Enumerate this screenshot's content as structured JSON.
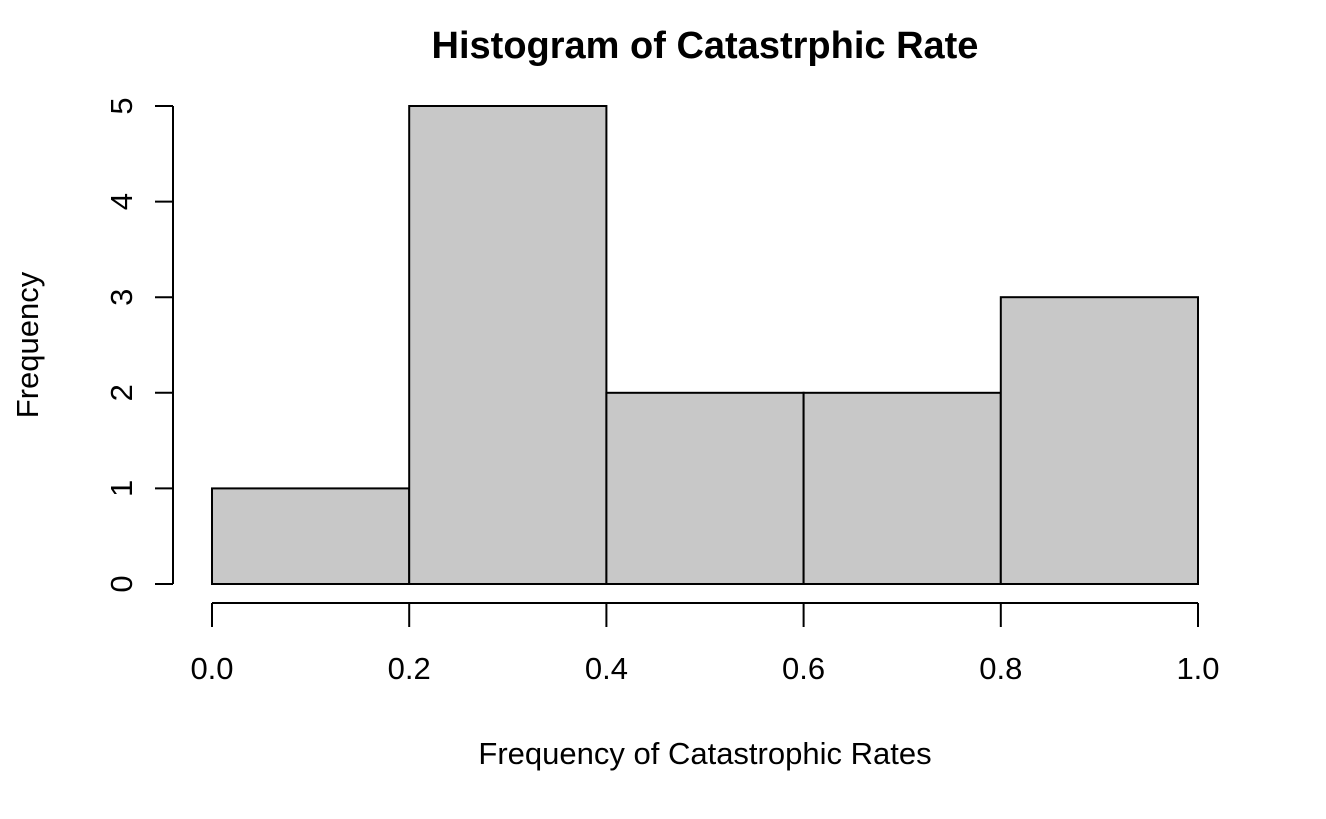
{
  "chart_data": {
    "type": "bar",
    "histogram": true,
    "title": "Histogram of Catastrphic Rate",
    "xlabel": "Frequency of Catastrophic Rates",
    "ylabel": "Frequency",
    "bins": [
      {
        "from": 0.0,
        "to": 0.2,
        "count": 1
      },
      {
        "from": 0.2,
        "to": 0.4,
        "count": 5
      },
      {
        "from": 0.4,
        "to": 0.6,
        "count": 2
      },
      {
        "from": 0.6,
        "to": 0.8,
        "count": 2
      },
      {
        "from": 0.8,
        "to": 1.0,
        "count": 3
      }
    ],
    "xlim": [
      0.0,
      1.0
    ],
    "ylim": [
      0,
      5
    ],
    "x_ticks": [
      0.0,
      0.2,
      0.4,
      0.6,
      0.8,
      1.0
    ],
    "x_tick_labels": [
      "0.0",
      "0.2",
      "0.4",
      "0.6",
      "0.8",
      "1.0"
    ],
    "y_ticks": [
      0,
      1,
      2,
      3,
      4,
      5
    ],
    "y_tick_labels": [
      "0",
      "1",
      "2",
      "3",
      "4",
      "5"
    ],
    "grid": false,
    "bar_color": "#c8c8c8",
    "edge_color": "#000000"
  }
}
